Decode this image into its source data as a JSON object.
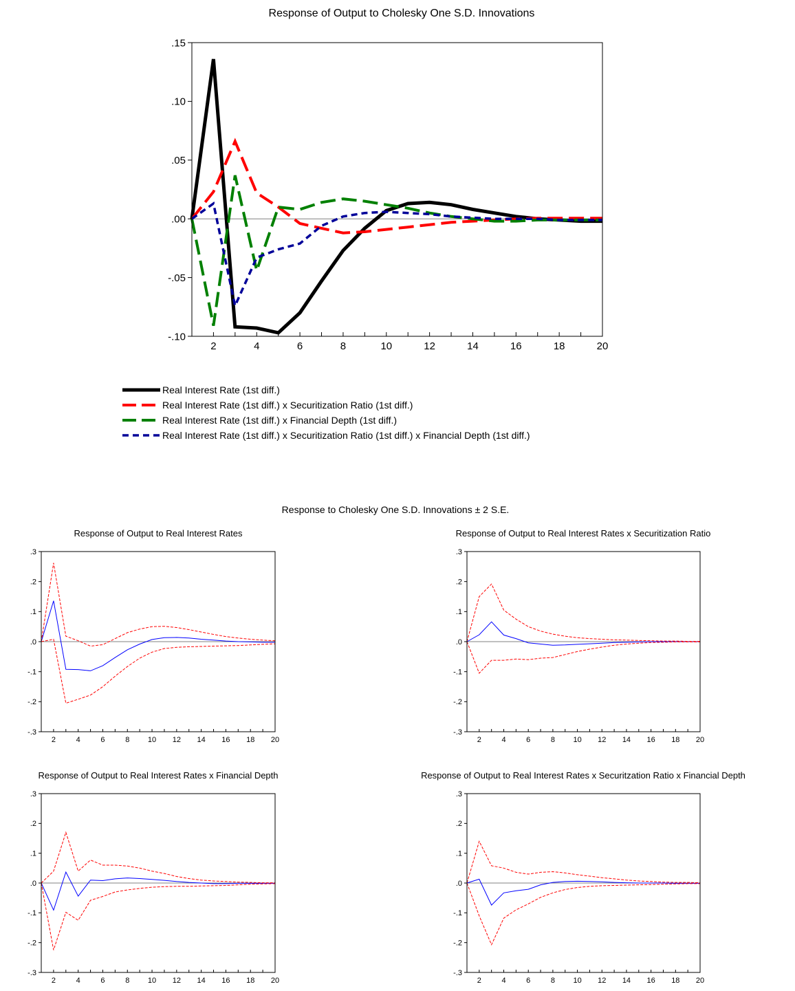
{
  "top_title": "Response of Output to Cholesky One S.D. Innovations",
  "bottom_title": "Response to Cholesky One S.D. Innovations ± 2 S.E.",
  "chart_data": [
    {
      "type": "line",
      "title": "Response of Output to Cholesky One S.D. Innovations",
      "x": [
        1,
        2,
        3,
        4,
        5,
        6,
        7,
        8,
        9,
        10,
        11,
        12,
        13,
        14,
        15,
        16,
        17,
        18,
        19,
        20
      ],
      "xticks": [
        2,
        4,
        6,
        8,
        10,
        12,
        14,
        16,
        18,
        20
      ],
      "ylim": [
        -0.1,
        0.15
      ],
      "yticks": [
        -0.1,
        -0.05,
        0.0,
        0.05,
        0.1,
        0.15
      ],
      "ytick_labels": [
        "-.10",
        "-.05",
        ".00",
        ".05",
        ".10",
        ".15"
      ],
      "legend_position": "bottom",
      "series": [
        {
          "name": "Real Interest Rate (1st diff.)",
          "color": "#000000",
          "dash": "solid",
          "values": [
            0.0,
            0.136,
            -0.092,
            -0.093,
            -0.097,
            -0.08,
            -0.053,
            -0.027,
            -0.008,
            0.007,
            0.013,
            0.014,
            0.012,
            0.008,
            0.005,
            0.002,
            0.0,
            -0.001,
            -0.002,
            -0.002
          ]
        },
        {
          "name": "Real Interest Rate (1st diff.) x Securitization Ratio (1st diff.)",
          "color": "#ff0000",
          "dash": "long",
          "values": [
            0.0,
            0.023,
            0.066,
            0.022,
            0.01,
            -0.004,
            -0.008,
            -0.012,
            -0.011,
            -0.009,
            -0.007,
            -0.005,
            -0.003,
            -0.002,
            -0.001,
            0.0,
            0.0005,
            0.0005,
            0.0005,
            0.0005
          ]
        },
        {
          "name": "Real Interest Rate (1st diff.) x Financial Depth (1st diff.)",
          "color": "#008000",
          "dash": "long",
          "values": [
            0.0,
            -0.091,
            0.037,
            -0.044,
            0.01,
            0.008,
            0.014,
            0.017,
            0.015,
            0.012,
            0.009,
            0.005,
            0.002,
            0.0,
            -0.002,
            -0.002,
            -0.001,
            -0.001,
            -0.001,
            -0.001
          ]
        },
        {
          "name": "Real Interest Rate (1st diff.) x Securitization Ratio (1st diff.) x Financial Depth (1st diff.)",
          "color": "#000099",
          "dash": "short",
          "values": [
            0.0,
            0.013,
            -0.074,
            -0.033,
            -0.026,
            -0.021,
            -0.006,
            0.002,
            0.005,
            0.006,
            0.005,
            0.004,
            0.002,
            0.001,
            0.0,
            0.0,
            0.0,
            -0.001,
            -0.001,
            -0.001
          ]
        }
      ]
    },
    {
      "type": "line",
      "title": "Response of Output to Real Interest Rates",
      "x": [
        1,
        2,
        3,
        4,
        5,
        6,
        7,
        8,
        9,
        10,
        11,
        12,
        13,
        14,
        15,
        16,
        17,
        18,
        19,
        20
      ],
      "xticks": [
        2,
        4,
        6,
        8,
        10,
        12,
        14,
        16,
        18,
        20
      ],
      "ylim": [
        -0.3,
        0.3
      ],
      "yticks": [
        -0.3,
        -0.2,
        -0.1,
        0.0,
        0.1,
        0.2,
        0.3
      ],
      "ytick_labels": [
        "-.3",
        "-.2",
        "-.1",
        ".0",
        ".1",
        ".2",
        ".3"
      ],
      "series": [
        {
          "role": "response",
          "color": "#0000ff",
          "dash": "solid",
          "values": [
            0.0,
            0.136,
            -0.092,
            -0.093,
            -0.097,
            -0.08,
            -0.053,
            -0.027,
            -0.008,
            0.007,
            0.013,
            0.014,
            0.012,
            0.008,
            0.005,
            0.002,
            0.0,
            -0.001,
            -0.002,
            -0.002
          ]
        },
        {
          "role": "upper",
          "color": "#ff0000",
          "dash": "dashed",
          "values": [
            0.0,
            0.262,
            0.018,
            0.003,
            -0.015,
            -0.01,
            0.01,
            0.03,
            0.042,
            0.05,
            0.051,
            0.047,
            0.04,
            0.032,
            0.024,
            0.017,
            0.012,
            0.008,
            0.005,
            0.003
          ]
        },
        {
          "role": "lower",
          "color": "#ff0000",
          "dash": "dashed",
          "values": [
            0.0,
            0.008,
            -0.205,
            -0.192,
            -0.178,
            -0.15,
            -0.115,
            -0.083,
            -0.055,
            -0.035,
            -0.023,
            -0.019,
            -0.017,
            -0.016,
            -0.015,
            -0.014,
            -0.013,
            -0.011,
            -0.009,
            -0.007
          ]
        }
      ]
    },
    {
      "type": "line",
      "title": "Response of Output to Real Interest Rates x Securitization Ratio",
      "x": [
        1,
        2,
        3,
        4,
        5,
        6,
        7,
        8,
        9,
        10,
        11,
        12,
        13,
        14,
        15,
        16,
        17,
        18,
        19,
        20
      ],
      "xticks": [
        2,
        4,
        6,
        8,
        10,
        12,
        14,
        16,
        18,
        20
      ],
      "ylim": [
        -0.3,
        0.3
      ],
      "yticks": [
        -0.3,
        -0.2,
        -0.1,
        0.0,
        0.1,
        0.2,
        0.3
      ],
      "ytick_labels": [
        "-.3",
        "-.2",
        "-.1",
        ".0",
        ".1",
        ".2",
        ".3"
      ],
      "series": [
        {
          "role": "response",
          "color": "#0000ff",
          "dash": "solid",
          "values": [
            0.0,
            0.023,
            0.066,
            0.022,
            0.01,
            -0.004,
            -0.008,
            -0.012,
            -0.011,
            -0.009,
            -0.007,
            -0.005,
            -0.003,
            -0.002,
            -0.001,
            0.0,
            0.0,
            0.0,
            0.0,
            0.0
          ]
        },
        {
          "role": "upper",
          "color": "#ff0000",
          "dash": "dashed",
          "values": [
            0.0,
            0.15,
            0.192,
            0.105,
            0.075,
            0.05,
            0.035,
            0.025,
            0.018,
            0.013,
            0.01,
            0.008,
            0.006,
            0.005,
            0.004,
            0.003,
            0.002,
            0.002,
            0.001,
            0.001
          ]
        },
        {
          "role": "lower",
          "color": "#ff0000",
          "dash": "dashed",
          "values": [
            0.0,
            -0.105,
            -0.062,
            -0.062,
            -0.058,
            -0.06,
            -0.055,
            -0.053,
            -0.043,
            -0.033,
            -0.025,
            -0.018,
            -0.012,
            -0.008,
            -0.005,
            -0.003,
            -0.002,
            -0.001,
            -0.001,
            -0.001
          ]
        }
      ]
    },
    {
      "type": "line",
      "title": "Response of Output to Real Interest Rates x Financial Depth",
      "x": [
        1,
        2,
        3,
        4,
        5,
        6,
        7,
        8,
        9,
        10,
        11,
        12,
        13,
        14,
        15,
        16,
        17,
        18,
        19,
        20
      ],
      "xticks": [
        2,
        4,
        6,
        8,
        10,
        12,
        14,
        16,
        18,
        20
      ],
      "ylim": [
        -0.3,
        0.3
      ],
      "yticks": [
        -0.3,
        -0.2,
        -0.1,
        0.0,
        0.1,
        0.2,
        0.3
      ],
      "ytick_labels": [
        "-.3",
        "-.2",
        "-.1",
        ".0",
        ".1",
        ".2",
        ".3"
      ],
      "series": [
        {
          "role": "response",
          "color": "#0000ff",
          "dash": "solid",
          "values": [
            0.0,
            -0.091,
            0.037,
            -0.044,
            0.01,
            0.008,
            0.014,
            0.017,
            0.015,
            0.012,
            0.009,
            0.005,
            0.002,
            0.0,
            -0.002,
            -0.002,
            -0.001,
            -0.001,
            -0.001,
            -0.001
          ]
        },
        {
          "role": "upper",
          "color": "#ff0000",
          "dash": "dashed",
          "values": [
            0.0,
            0.04,
            0.17,
            0.04,
            0.077,
            0.06,
            0.06,
            0.057,
            0.05,
            0.04,
            0.032,
            0.022,
            0.015,
            0.01,
            0.007,
            0.005,
            0.003,
            0.002,
            0.001,
            0.001
          ]
        },
        {
          "role": "lower",
          "color": "#ff0000",
          "dash": "dashed",
          "values": [
            0.0,
            -0.225,
            -0.098,
            -0.125,
            -0.058,
            -0.045,
            -0.03,
            -0.023,
            -0.018,
            -0.014,
            -0.012,
            -0.011,
            -0.011,
            -0.01,
            -0.009,
            -0.008,
            -0.006,
            -0.004,
            -0.003,
            -0.002
          ]
        }
      ]
    },
    {
      "type": "line",
      "title": "Response of Output to Real Interest Rates x Securitzation Ratio x Financial Depth",
      "x": [
        1,
        2,
        3,
        4,
        5,
        6,
        7,
        8,
        9,
        10,
        11,
        12,
        13,
        14,
        15,
        16,
        17,
        18,
        19,
        20
      ],
      "xticks": [
        2,
        4,
        6,
        8,
        10,
        12,
        14,
        16,
        18,
        20
      ],
      "ylim": [
        -0.3,
        0.3
      ],
      "yticks": [
        -0.3,
        -0.2,
        -0.1,
        0.0,
        0.1,
        0.2,
        0.3
      ],
      "ytick_labels": [
        "-.3",
        "-.2",
        "-.1",
        ".0",
        ".1",
        ".2",
        ".3"
      ],
      "series": [
        {
          "role": "response",
          "color": "#0000ff",
          "dash": "solid",
          "values": [
            0.0,
            0.013,
            -0.074,
            -0.033,
            -0.026,
            -0.021,
            -0.006,
            0.002,
            0.005,
            0.006,
            0.005,
            0.004,
            0.002,
            0.001,
            0.0,
            0.0,
            0.0,
            -0.001,
            -0.001,
            -0.001
          ]
        },
        {
          "role": "upper",
          "color": "#ff0000",
          "dash": "dashed",
          "values": [
            0.0,
            0.14,
            0.058,
            0.05,
            0.036,
            0.03,
            0.036,
            0.038,
            0.034,
            0.028,
            0.023,
            0.018,
            0.014,
            0.01,
            0.007,
            0.005,
            0.003,
            0.002,
            0.002,
            0.001
          ]
        },
        {
          "role": "lower",
          "color": "#ff0000",
          "dash": "dashed",
          "values": [
            0.0,
            -0.11,
            -0.207,
            -0.118,
            -0.09,
            -0.07,
            -0.048,
            -0.033,
            -0.022,
            -0.015,
            -0.011,
            -0.009,
            -0.008,
            -0.007,
            -0.006,
            -0.005,
            -0.004,
            -0.003,
            -0.002,
            -0.002
          ]
        }
      ]
    }
  ]
}
